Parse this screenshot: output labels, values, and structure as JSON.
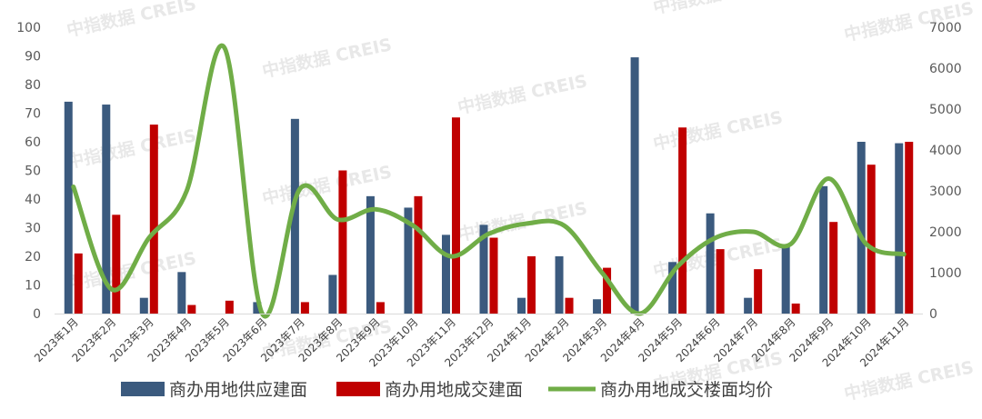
{
  "watermark": "中指数据 CREIS",
  "chart_data": {
    "type": "bar",
    "categories": [
      "2023年1月",
      "2023年2月",
      "2023年3月",
      "2023年4月",
      "2023年5月",
      "2023年6月",
      "2023年7月",
      "2023年8月",
      "2023年9月",
      "2023年10月",
      "2023年11月",
      "2023年12月",
      "2024年1月",
      "2024年2月",
      "2024年3月",
      "2024年4月",
      "2024年5月",
      "2024年6月",
      "2024年7月",
      "2024年8月",
      "2024年9月",
      "2024年10月",
      "2024年11月"
    ],
    "series": [
      {
        "name": "商办用地供应建面",
        "type": "bar",
        "axis": "left",
        "color": "#3b5a7e",
        "values": [
          74,
          73,
          5.5,
          14.5,
          0,
          4,
          68,
          13.5,
          41,
          37,
          27.5,
          31,
          5.5,
          20,
          5,
          89.5,
          18,
          35,
          5.5,
          23.5,
          44.5,
          60,
          59.5
        ]
      },
      {
        "name": "商办用地成交建面",
        "type": "bar",
        "axis": "left",
        "color": "#c00000",
        "values": [
          21,
          34.5,
          66,
          3,
          4.5,
          0,
          4,
          50,
          4,
          41,
          68.5,
          26.5,
          20,
          5.5,
          16,
          0,
          65,
          22.5,
          15.5,
          3.5,
          32,
          52,
          60
        ]
      },
      {
        "name": "商办用地成交楼面均价",
        "type": "line",
        "axis": "right",
        "color": "#70ad47",
        "values": [
          3100,
          600,
          1850,
          3000,
          6500,
          0,
          3050,
          2300,
          2550,
          2150,
          1400,
          1950,
          2200,
          2150,
          1000,
          0,
          1150,
          1850,
          2000,
          1700,
          3300,
          1700,
          1450
        ]
      }
    ],
    "y_left": {
      "min": 0,
      "max": 100,
      "step": 10
    },
    "y_right": {
      "min": 0,
      "max": 7000,
      "step": 1000
    },
    "grid": false,
    "legend": "bottom-center"
  }
}
